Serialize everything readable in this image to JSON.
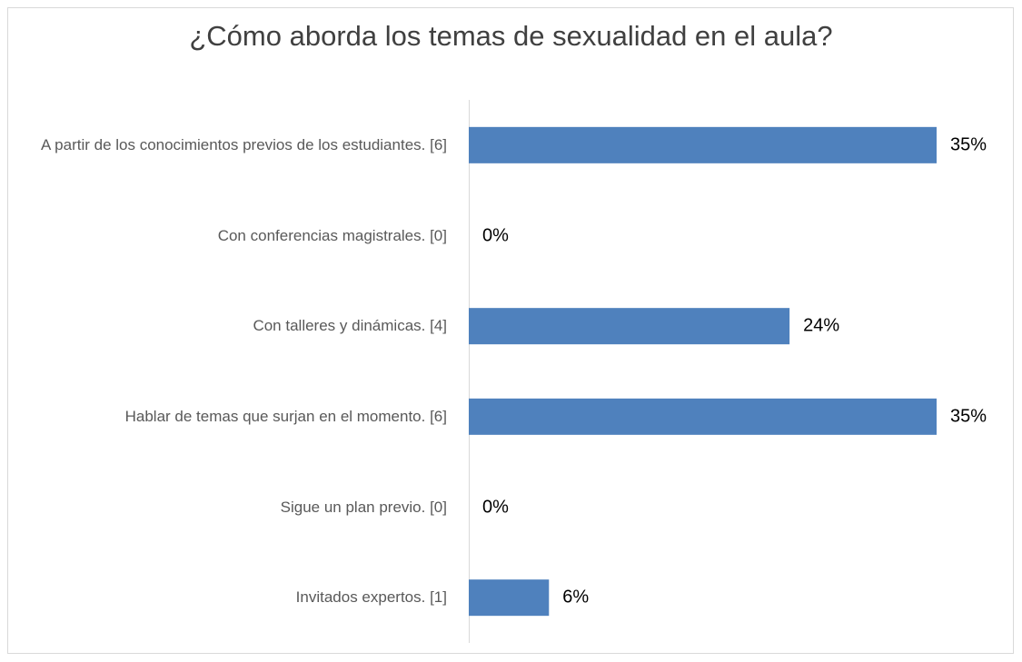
{
  "chart_data": {
    "type": "bar",
    "orientation": "horizontal",
    "title": "¿Cómo aborda los temas de sexualidad en el aula?",
    "categories": [
      "A partir de los conocimientos previos de los estudiantes. [6]",
      "Con conferencias magistrales. [0]",
      "Con talleres y dinámicas. [4]",
      "Hablar de temas que surjan en el  momento. [6]",
      "Sigue un plan previo. [0]",
      "Invitados expertos. [1]"
    ],
    "values": [
      35,
      0,
      24,
      35,
      0,
      6
    ],
    "value_labels": [
      "35%",
      "0%",
      "24%",
      "35%",
      "0%",
      "6%"
    ],
    "color": "#4f81bd"
  }
}
